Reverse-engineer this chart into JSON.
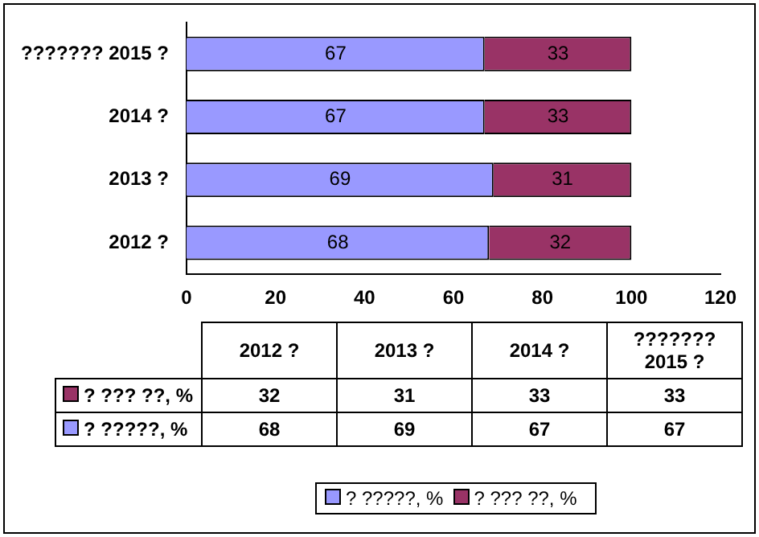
{
  "chart_data": [
    {
      "type": "bar",
      "orientation": "horizontal",
      "stacked": true,
      "categories": [
        "??????? 2015 ?",
        "2014 ?",
        "2013 ?",
        "2012 ?"
      ],
      "series": [
        {
          "name": "? ?????, %",
          "color": "#9999ff",
          "values": [
            67,
            67,
            69,
            68
          ]
        },
        {
          "name": "? ??? ??, %",
          "color": "#993366",
          "values": [
            33,
            33,
            31,
            32
          ]
        }
      ],
      "xlim": [
        0,
        120
      ],
      "xticks": [
        0,
        20,
        40,
        60,
        80,
        100,
        120
      ],
      "grid": false,
      "legend": "bottom",
      "data_labels": true
    },
    {
      "type": "other",
      "categories": [
        "2012 ?",
        "2013 ?",
        "2014 ?",
        "??????? 2015 ?"
      ],
      "series": [
        {
          "name": "? ??? ??, %",
          "color": "#993366",
          "values": [
            32,
            31,
            33,
            33
          ]
        },
        {
          "name": "? ?????, %",
          "color": "#9999ff",
          "values": [
            68,
            69,
            67,
            67
          ]
        }
      ],
      "data_labels": true
    }
  ]
}
